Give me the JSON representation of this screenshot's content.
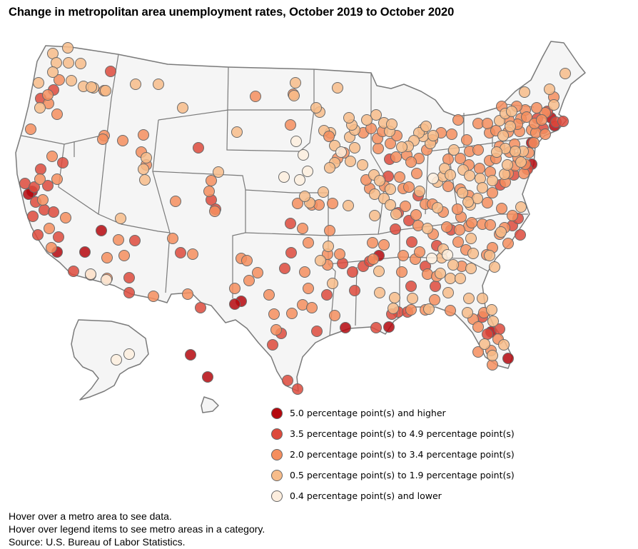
{
  "title": "Change in metropolitan area unemployment rates, October 2019 to October 2020",
  "colors": {
    "cat1": "#b5080e",
    "cat2": "#dd4a3c",
    "cat3": "#f58e5e",
    "cat4": "#f7bc8a",
    "cat5": "#fdeede"
  },
  "legend": [
    {
      "category": "cat1",
      "label": "5.0 percentage point(s) and higher"
    },
    {
      "category": "cat2",
      "label": "3.5 percentage point(s) to 4.9 percentage point(s)"
    },
    {
      "category": "cat3",
      "label": "2.0 percentage point(s) to 3.4 percentage point(s)"
    },
    {
      "category": "cat4",
      "label": "0.5 percentage point(s) to 1.9 percentage point(s)"
    },
    {
      "category": "cat5",
      "label": "0.4 percentage point(s) and lower"
    }
  ],
  "footer": {
    "line1": "Hover over a metro area to see data.",
    "line2": "Hover over legend items to see metro areas in a category.",
    "source": "Source: U.S. Bureau of Labor Statistics."
  },
  "metros": [
    [
      80,
      353,
      1
    ],
    [
      119,
      353,
      1
    ],
    [
      142,
      323,
      1
    ],
    [
      45,
      268,
      1
    ],
    [
      40,
      272,
      1
    ],
    [
      338,
      422,
      1
    ],
    [
      329,
      426,
      1
    ],
    [
      531,
      358,
      1
    ],
    [
      484,
      459,
      1
    ],
    [
      545,
      458,
      1
    ],
    [
      688,
      465,
      1
    ],
    [
      712,
      502,
      1
    ],
    [
      267,
      497,
      1
    ],
    [
      291,
      528,
      1
    ],
    [
      745,
      230,
      1
    ],
    [
      745,
      200,
      1
    ],
    [
      772,
      165,
      1
    ],
    [
      777,
      176,
      1
    ],
    [
      75,
      126,
      2
    ],
    [
      57,
      138,
      2
    ],
    [
      155,
      100,
      2
    ],
    [
      278,
      207,
      2
    ],
    [
      88,
      228,
      2
    ],
    [
      57,
      237,
      2
    ],
    [
      35,
      257,
      2
    ],
    [
      48,
      262,
      2
    ],
    [
      67,
      260,
      2
    ],
    [
      50,
      283,
      2
    ],
    [
      62,
      294,
      2
    ],
    [
      46,
      303,
      2
    ],
    [
      53,
      329,
      2
    ],
    [
      189,
      337,
      2
    ],
    [
      253,
      354,
      2
    ],
    [
      181,
      389,
      2
    ],
    [
      181,
      410,
      2
    ],
    [
      407,
      313,
      2
    ],
    [
      432,
      340
    ],
    [
      408,
      354,
      2
    ],
    [
      399,
      376,
      2
    ],
    [
      480,
      369,
      2
    ],
    [
      494,
      381,
      2
    ],
    [
      458,
      413,
      2
    ],
    [
      497,
      407,
      2
    ],
    [
      509,
      373,
      2
    ],
    [
      518,
      366,
      2
    ],
    [
      558,
      437,
      2
    ],
    [
      571,
      437,
      2
    ],
    [
      576,
      401,
      2
    ],
    [
      610,
      401,
      2
    ],
    [
      596,
      373,
      2
    ],
    [
      676,
      444,
      2
    ],
    [
      683,
      468,
      2
    ],
    [
      700,
      461,
      2
    ],
    [
      718,
      316,
      2
    ],
    [
      726,
      306,
      2
    ],
    [
      729,
      329,
      2
    ],
    [
      701,
      259,
      2
    ],
    [
      720,
      245,
      2
    ],
    [
      739,
      237,
      2
    ],
    [
      761,
      180,
      2
    ],
    [
      767,
      156,
      2
    ],
    [
      753,
      166,
      2
    ],
    [
      779,
      171,
      2
    ],
    [
      789,
      170,
      2
    ],
    [
      632,
      322,
      2
    ],
    [
      612,
      344,
      2
    ],
    [
      546,
      223,
      2
    ],
    [
      544,
      247,
      2
    ],
    [
      586,
      274,
      2
    ],
    [
      558,
      298,
      2
    ],
    [
      573,
      309,
      2
    ],
    [
      554,
      321,
      2
    ],
    [
      577,
      339,
      2
    ],
    [
      296,
      280,
      2
    ],
    [
      302,
      293,
      2
    ],
    [
      281,
      431,
      2
    ],
    [
      103,
      380,
      2
    ],
    [
      75,
      297,
      2
    ],
    [
      82,
      332,
      2
    ],
    [
      417,
      545,
      2
    ],
    [
      403,
      533,
      2
    ],
    [
      382,
      483,
      2
    ],
    [
      394,
      467,
      2
    ],
    [
      444,
      464,
      2
    ],
    [
      527,
      459,
      2
    ],
    [
      549,
      440,
      2
    ],
    [
      83,
      112,
      3
    ],
    [
      68,
      145,
      3
    ],
    [
      80,
      160,
      3
    ],
    [
      43,
      181,
      3
    ],
    [
      146,
      190,
      3
    ],
    [
      172,
      197,
      3
    ],
    [
      201,
      189,
      3
    ],
    [
      198,
      213,
      3
    ],
    [
      205,
      231,
      3
    ],
    [
      166,
      336,
      3
    ],
    [
      174,
      358,
      3
    ],
    [
      242,
      334,
      3
    ],
    [
      270,
      356,
      3
    ],
    [
      263,
      412,
      3
    ],
    [
      150,
      361,
      3
    ],
    [
      246,
      282,
      3
    ],
    [
      296,
      253,
      3
    ],
    [
      293,
      268,
      3
    ],
    [
      301,
      296,
      3
    ],
    [
      338,
      362,
      3
    ],
    [
      346,
      365,
      3
    ],
    [
      361,
      382,
      3
    ],
    [
      349,
      393,
      3
    ],
    [
      329,
      404,
      3
    ],
    [
      377,
      413,
      3
    ],
    [
      384,
      440,
      3
    ],
    [
      387,
      462,
      3
    ],
    [
      409,
      439,
      3
    ],
    [
      424,
      427
    ],
    [
      432,
      404,
      3
    ],
    [
      437,
      431,
      3
    ],
    [
      469,
      442,
      3
    ],
    [
      459,
      356,
      3
    ],
    [
      459,
      371,
      3
    ],
    [
      476,
      356,
      3
    ],
    [
      427,
      381,
      3
    ],
    [
      424,
      320,
      3
    ],
    [
      462,
      323,
      3
    ],
    [
      417,
      285,
      3
    ],
    [
      437,
      287,
      3
    ],
    [
      447,
      287,
      3
    ],
    [
      466,
      285,
      3
    ],
    [
      522,
      340,
      3
    ],
    [
      538,
      343,
      3
    ],
    [
      523,
      363,
      3
    ],
    [
      565,
      358,
      3
    ],
    [
      582,
      363,
      3
    ],
    [
      588,
      353,
      3
    ],
    [
      563,
      381,
      3
    ],
    [
      599,
      384,
      3
    ],
    [
      612,
      387,
      3
    ],
    [
      576,
      434,
      3
    ],
    [
      596,
      434,
      3
    ],
    [
      631,
      435,
      3
    ],
    [
      609,
      420,
      3
    ],
    [
      663,
      447,
      3
    ],
    [
      670,
      458,
      3
    ],
    [
      688,
      491,
      3
    ],
    [
      670,
      493,
      3
    ],
    [
      690,
      511,
      3
    ],
    [
      698,
      475,
      3
    ],
    [
      678,
      438,
      3
    ],
    [
      647,
      373,
      3
    ],
    [
      653,
      350,
      3
    ],
    [
      642,
      339,
      3
    ],
    [
      626,
      318,
      3
    ],
    [
      646,
      304,
      3
    ],
    [
      657,
      317,
      3
    ],
    [
      676,
      314,
      3
    ],
    [
      687,
      315,
      3
    ],
    [
      700,
      328,
      3
    ],
    [
      707,
      319,
      3
    ],
    [
      718,
      302,
      3
    ],
    [
      712,
      341,
      3
    ],
    [
      690,
      347,
      3
    ],
    [
      682,
      357,
      3
    ],
    [
      661,
      312,
      3
    ],
    [
      644,
      322,
      3
    ],
    [
      703,
      292,
      3
    ],
    [
      683,
      284,
      3
    ],
    [
      690,
      270,
      3
    ],
    [
      708,
      255,
      3
    ],
    [
      712,
      243,
      3
    ],
    [
      722,
      232,
      3
    ],
    [
      734,
      243,
      3
    ],
    [
      736,
      230,
      3
    ],
    [
      726,
      221,
      3
    ],
    [
      714,
      213,
      3
    ],
    [
      700,
      205,
      3
    ],
    [
      712,
      185,
      3
    ],
    [
      730,
      166,
      3
    ],
    [
      745,
      182,
      3
    ],
    [
      751,
      186,
      3
    ],
    [
      764,
      188,
      3
    ],
    [
      736,
      154,
      3
    ],
    [
      776,
      136,
      3
    ],
    [
      764,
      158,
      3
    ],
    [
      686,
      186,
      3
    ],
    [
      670,
      173,
      3
    ],
    [
      695,
      183,
      3
    ],
    [
      654,
      196,
      3
    ],
    [
      645,
      222,
      3
    ],
    [
      628,
      223,
      3
    ],
    [
      606,
      196,
      3
    ],
    [
      598,
      210,
      3
    ],
    [
      587,
      222,
      3
    ],
    [
      570,
      217,
      3
    ],
    [
      576,
      227
    ],
    [
      555,
      220,
      3
    ],
    [
      530,
      208,
      3
    ],
    [
      529,
      194,
      3
    ],
    [
      560,
      248,
      3
    ],
    [
      565,
      264,
      3
    ],
    [
      573,
      262,
      3
    ],
    [
      596,
      286,
      3
    ],
    [
      606,
      286,
      3
    ],
    [
      568,
      289,
      3
    ],
    [
      583,
      301,
      3
    ],
    [
      509,
      186,
      3
    ],
    [
      520,
      180,
      3
    ],
    [
      536,
      184,
      3
    ],
    [
      547,
      201,
      3
    ],
    [
      556,
      190,
      3
    ],
    [
      482,
      214,
      3
    ],
    [
      473,
      222,
      3
    ],
    [
      518,
      264,
      3
    ],
    [
      539,
      261,
      3
    ],
    [
      513,
      252,
      3
    ],
    [
      584,
      243,
      3
    ],
    [
      586,
      316,
      3
    ],
    [
      621,
      297
    ],
    [
      607,
      328,
      3
    ],
    [
      628,
      261,
      3
    ],
    [
      645,
      265,
      3
    ],
    [
      657,
      274,
      3
    ],
    [
      657,
      231,
      3
    ],
    [
      672,
      236,
      3
    ],
    [
      687,
      241,
      3
    ],
    [
      686,
      225,
      3
    ],
    [
      658,
      212,
      3
    ],
    [
      670,
      210,
      3
    ],
    [
      695,
      222,
      3
    ],
    [
      721,
      202,
      3
    ],
    [
      728,
      184,
      3
    ],
    [
      748,
      200,
      3
    ],
    [
      741,
      214,
      3
    ],
    [
      725,
      174,
      3
    ],
    [
      713,
      168,
      3
    ],
    [
      738,
      164,
      3
    ],
    [
      724,
      149,
      3
    ],
    [
      703,
      149,
      3
    ],
    [
      749,
      173,
      3
    ],
    [
      752,
      151,
      3
    ],
    [
      759,
      168,
      3
    ],
    [
      683,
      173,
      3
    ],
    [
      642,
      168,
      3
    ],
    [
      633,
      188,
      3
    ],
    [
      618,
      186,
      3
    ],
    [
      411,
      132,
      3
    ],
    [
      358,
      135,
      3
    ],
    [
      146,
      127
    ],
    [
      144,
      195,
      3
    ],
    [
      67,
      133,
      3
    ],
    [
      80,
      251,
      3
    ],
    [
      60,
      280,
      3
    ],
    [
      56,
      251,
      3
    ],
    [
      73,
      219,
      3
    ],
    [
      92,
      305,
      3
    ],
    [
      69,
      320,
      3
    ],
    [
      72,
      347,
      3
    ],
    [
      215,
      415
    ],
    [
      127,
      385
    ],
    [
      150,
      390
    ],
    [
      95,
      67,
      4
    ],
    [
      74,
      75,
      4
    ],
    [
      79,
      88,
      4
    ],
    [
      96,
      88,
      4
    ],
    [
      113,
      89,
      4
    ],
    [
      100,
      113,
      4
    ],
    [
      117,
      121,
      4
    ],
    [
      131,
      123,
      4
    ],
    [
      148,
      127,
      4
    ],
    [
      56,
      151,
      4
    ],
    [
      74,
      101,
      4
    ],
    [
      54,
      116,
      4
    ],
    [
      190,
      118,
      4
    ],
    [
      222,
      118,
      4
    ],
    [
      256,
      151,
      4
    ],
    [
      205,
      221,
      4
    ],
    [
      201,
      237,
      4
    ],
    [
      203,
      252,
      4
    ],
    [
      306,
      241,
      4
    ],
    [
      332,
      185,
      4
    ],
    [
      414,
      116,
      4
    ],
    [
      412,
      134,
      4
    ],
    [
      448,
      157,
      4
    ],
    [
      473,
      123,
      4
    ],
    [
      463,
      186,
      4
    ],
    [
      469,
      204,
      4
    ],
    [
      490,
      192,
      4
    ],
    [
      497,
      207,
      4
    ],
    [
      491,
      226,
      4
    ],
    [
      469,
      228,
      4
    ],
    [
      462,
      235,
      4
    ],
    [
      453,
      269,
      4
    ],
    [
      508,
      231,
      4
    ],
    [
      524,
      245,
      4
    ],
    [
      532,
      253,
      4
    ],
    [
      525,
      272,
      4
    ],
    [
      547,
      265,
      4
    ],
    [
      538,
      278,
      4
    ],
    [
      525,
      302,
      4
    ],
    [
      547,
      287,
      4
    ],
    [
      555,
      300,
      4
    ],
    [
      588,
      268,
      4
    ],
    [
      613,
      255,
      4
    ],
    [
      621,
      247,
      4
    ],
    [
      623,
      236,
      4
    ],
    [
      636,
      210,
      4
    ],
    [
      631,
      245,
      4
    ],
    [
      649,
      238,
      4
    ],
    [
      658,
      246,
      4
    ],
    [
      673,
      250,
      4
    ],
    [
      676,
      263,
      4
    ],
    [
      690,
      253,
      4
    ],
    [
      707,
      244,
      4
    ],
    [
      711,
      231,
      4
    ],
    [
      730,
      227,
      4
    ],
    [
      733,
      212,
      4
    ],
    [
      722,
      212,
      4
    ],
    [
      708,
      208,
      4
    ],
    [
      696,
      213,
      4
    ],
    [
      705,
      190,
      4
    ],
    [
      715,
      177,
      4
    ],
    [
      700,
      169,
      4
    ],
    [
      708,
      159,
      4
    ],
    [
      717,
      156,
      4
    ],
    [
      735,
      129,
      4
    ],
    [
      770,
      125,
      4
    ],
    [
      776,
      147,
      4
    ],
    [
      792,
      103,
      4
    ],
    [
      603,
      201,
      4
    ],
    [
      593,
      191,
      4
    ],
    [
      593,
      181,
      4
    ],
    [
      587,
      186,
      4
    ],
    [
      597,
      177,
      4
    ],
    [
      607,
      190,
      4
    ],
    [
      580,
      197,
      4
    ],
    [
      572,
      205,
      4
    ],
    [
      563,
      206,
      4
    ],
    [
      538,
      172,
      4
    ],
    [
      546,
      184,
      4
    ],
    [
      549,
      174,
      4
    ],
    [
      527,
      161,
      4
    ],
    [
      514,
      168,
      4
    ],
    [
      497,
      182,
      4
    ],
    [
      493,
      175,
      4
    ],
    [
      454,
      183,
      4
    ],
    [
      461,
      191
    ],
    [
      434,
      284,
      4
    ],
    [
      488,
      288,
      4
    ],
    [
      460,
      345,
      4
    ],
    [
      449,
      365,
      4
    ],
    [
      466,
      397,
      4
    ],
    [
      531,
      380,
      4
    ],
    [
      532,
      410,
      4
    ],
    [
      553,
      417,
      4
    ],
    [
      551,
      432,
      4
    ],
    [
      578,
      418,
      4
    ],
    [
      601,
      433,
      4
    ],
    [
      628,
      410,
      4
    ],
    [
      631,
      390,
      4
    ],
    [
      617,
      383,
      4
    ],
    [
      645,
      390,
      4
    ],
    [
      660,
      376,
      4
    ],
    [
      663,
      355,
      4
    ],
    [
      686,
      358,
      4
    ],
    [
      693,
      374,
      4
    ],
    [
      689,
      434,
      4
    ],
    [
      655,
      438,
      4
    ],
    [
      657,
      418,
      4
    ],
    [
      676,
      418,
      4
    ],
    [
      691,
      450,
      4
    ],
    [
      679,
      482,
      4
    ],
    [
      690,
      498,
      4
    ],
    [
      706,
      483,
      4
    ],
    [
      730,
      290,
      4
    ],
    [
      702,
      325,
      4
    ],
    [
      635,
      371,
      4
    ],
    [
      619,
      361,
      4
    ],
    [
      621,
      349,
      4
    ],
    [
      599,
      320,
      4
    ],
    [
      660,
      334,
      4
    ],
    [
      659,
      287,
      4
    ],
    [
      648,
      270,
      4
    ],
    [
      669,
      278,
      4
    ],
    [
      656,
      283,
      4
    ],
    [
      641,
      293
    ],
    [
      613,
      291,
      4
    ],
    [
      427,
      275,
      4
    ],
    [
      443,
      151,
      4
    ],
    [
      489,
      165,
      4
    ],
    [
      407,
      175
    ],
    [
      169,
      306,
      4
    ],
    [
      128,
      122,
      4
    ]
  ],
  "metros_low": [
    [
      415,
      198
    ],
    [
      425,
      217
    ],
    [
      478,
      213
    ],
    [
      398,
      248
    ],
    [
      420,
      252
    ],
    [
      431,
      240
    ],
    [
      127,
      384
    ],
    [
      149,
      392
    ],
    [
      605,
      362
    ],
    [
      627,
      357
    ],
    [
      607,
      250
    ],
    [
      181,
      496
    ],
    [
      163,
      504
    ]
  ]
}
